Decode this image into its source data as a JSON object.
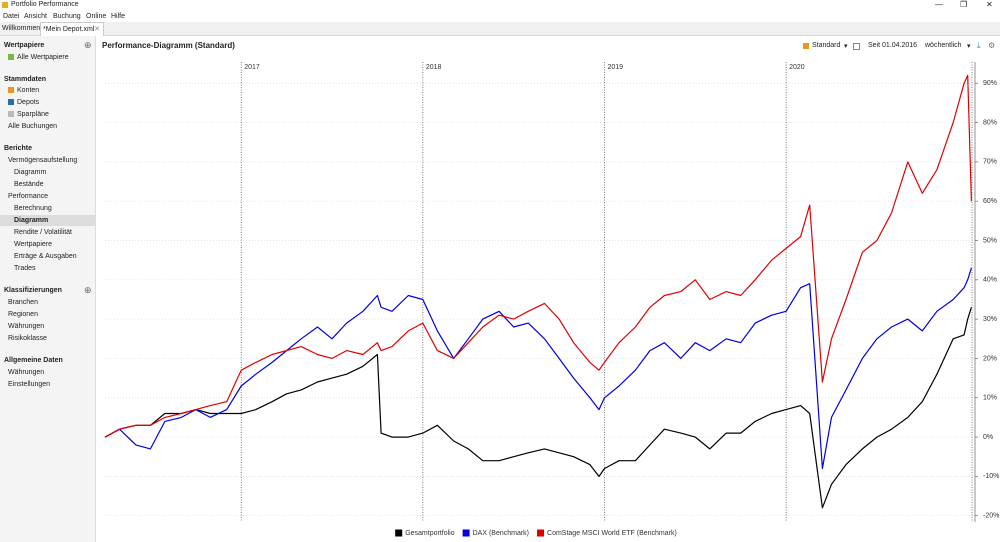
{
  "app": {
    "title": "Portfolio Performance",
    "menu": [
      "Datei",
      "Ansicht",
      "Buchung",
      "Online",
      "Hilfe"
    ],
    "tabs": [
      "Willkommen",
      "*Mein Depot.xml"
    ]
  },
  "sidebar": {
    "wertpapiere": {
      "title": "Wertpapiere",
      "items": [
        "Alle Wertpapiere"
      ]
    },
    "stammdaten": {
      "title": "Stammdaten",
      "items": [
        "Konten",
        "Depots",
        "Sparpläne",
        "Alle Buchungen"
      ]
    },
    "berichte": {
      "title": "Berichte",
      "items": [
        "Vermögensaufstellung",
        "Diagramm",
        "Bestände",
        "Performance",
        "Berechnung",
        "Diagramm",
        "Rendite / Volatilität",
        "Wertpapiere",
        "Erträge & Ausgaben",
        "Trades"
      ]
    },
    "klassifizierungen": {
      "title": "Klassifizierungen",
      "items": [
        "Branchen",
        "Regionen",
        "Währungen",
        "Risikoklasse"
      ]
    },
    "allgemein": {
      "title": "Allgemeine Daten",
      "items": [
        "Währungen",
        "Einstellungen"
      ]
    }
  },
  "toolbar": {
    "view": "Standard",
    "period": "Seit 01.04.2016",
    "interval": "wöchentlich"
  },
  "chart_data": {
    "type": "line",
    "title": "Performance-Diagramm (Standard)",
    "x": [
      2016.25,
      2016.33,
      2016.42,
      2016.5,
      2016.58,
      2016.67,
      2016.75,
      2016.83,
      2016.92,
      2017.0,
      2017.08,
      2017.17,
      2017.25,
      2017.33,
      2017.42,
      2017.5,
      2017.58,
      2017.67,
      2017.75,
      2017.77,
      2017.83,
      2017.92,
      2018.0,
      2018.08,
      2018.17,
      2018.25,
      2018.33,
      2018.42,
      2018.5,
      2018.58,
      2018.67,
      2018.75,
      2018.83,
      2018.92,
      2018.97,
      2019.0,
      2019.08,
      2019.17,
      2019.25,
      2019.33,
      2019.42,
      2019.5,
      2019.58,
      2019.67,
      2019.75,
      2019.83,
      2019.92,
      2020.0,
      2020.08,
      2020.13,
      2020.2,
      2020.25,
      2020.33,
      2020.42,
      2020.5,
      2020.58,
      2020.67,
      2020.75,
      2020.83,
      2020.92,
      2020.98,
      2021.0,
      2021.02
    ],
    "xlim": [
      2016.25,
      2021.04
    ],
    "xticks": [
      2017,
      2018,
      2019,
      2020
    ],
    "ylim": [
      -21.6,
      95.4
    ],
    "yticks": [
      {
        "value": -20,
        "label": "-20%"
      },
      {
        "value": -10,
        "label": "-10%"
      },
      {
        "value": 0,
        "label": "0%"
      },
      {
        "value": 10,
        "label": "10%"
      },
      {
        "value": 20,
        "label": "20%"
      },
      {
        "value": 30,
        "label": "30%"
      },
      {
        "value": 40,
        "label": "40%"
      },
      {
        "value": 50,
        "label": "50%"
      },
      {
        "value": 60,
        "label": "60%"
      },
      {
        "value": 70,
        "label": "70%"
      },
      {
        "value": 80,
        "label": "80%"
      },
      {
        "value": 90,
        "label": "90%"
      }
    ],
    "grid": true,
    "legend": "bottom",
    "series": [
      {
        "name": "Gesamtportfolio",
        "color": "#000000",
        "values": [
          0,
          2,
          3,
          3,
          6,
          6,
          7,
          6,
          6,
          6,
          7,
          9,
          11,
          12,
          14,
          15,
          16,
          18,
          21,
          1,
          0,
          0,
          1,
          3,
          -1,
          -3,
          -6,
          -6,
          -5,
          -4,
          -3,
          -4,
          -5,
          -7,
          -10,
          -8,
          -6,
          -6,
          -2,
          2,
          1,
          0,
          -3,
          1,
          1,
          4,
          6,
          7,
          8,
          6,
          -18,
          -12,
          -7,
          -3,
          0,
          2,
          5,
          9,
          16,
          25,
          26,
          30,
          33
        ]
      },
      {
        "name": "DAX (Benchmark)",
        "color": "#0000e0",
        "values": [
          0,
          2,
          -2,
          -3,
          4,
          5,
          7,
          5,
          7,
          13,
          16,
          19,
          22,
          25,
          28,
          25,
          29,
          32,
          36,
          33,
          32,
          36,
          35,
          27,
          20,
          25,
          30,
          32,
          28,
          29,
          25,
          20,
          15,
          10,
          7,
          10,
          13,
          17,
          22,
          24,
          20,
          24,
          22,
          25,
          24,
          29,
          31,
          32,
          38,
          39,
          -8,
          5,
          12,
          20,
          25,
          28,
          30,
          27,
          32,
          35,
          38,
          40,
          43
        ]
      },
      {
        "name": "ComStage MSCI World ETF (Benchmark)",
        "color": "#e00000",
        "values": [
          0,
          2,
          3,
          3,
          5,
          6,
          7,
          8,
          9,
          17,
          19,
          21,
          22,
          23,
          21,
          20,
          22,
          21,
          24,
          22,
          23,
          27,
          29,
          22,
          20,
          24,
          28,
          31,
          30,
          32,
          34,
          30,
          24,
          19,
          17,
          19,
          24,
          28,
          33,
          36,
          37,
          40,
          35,
          37,
          36,
          40,
          45,
          48,
          51,
          59,
          14,
          25,
          35,
          47,
          50,
          57,
          70,
          62,
          68,
          80,
          90,
          92,
          60
        ]
      }
    ]
  }
}
